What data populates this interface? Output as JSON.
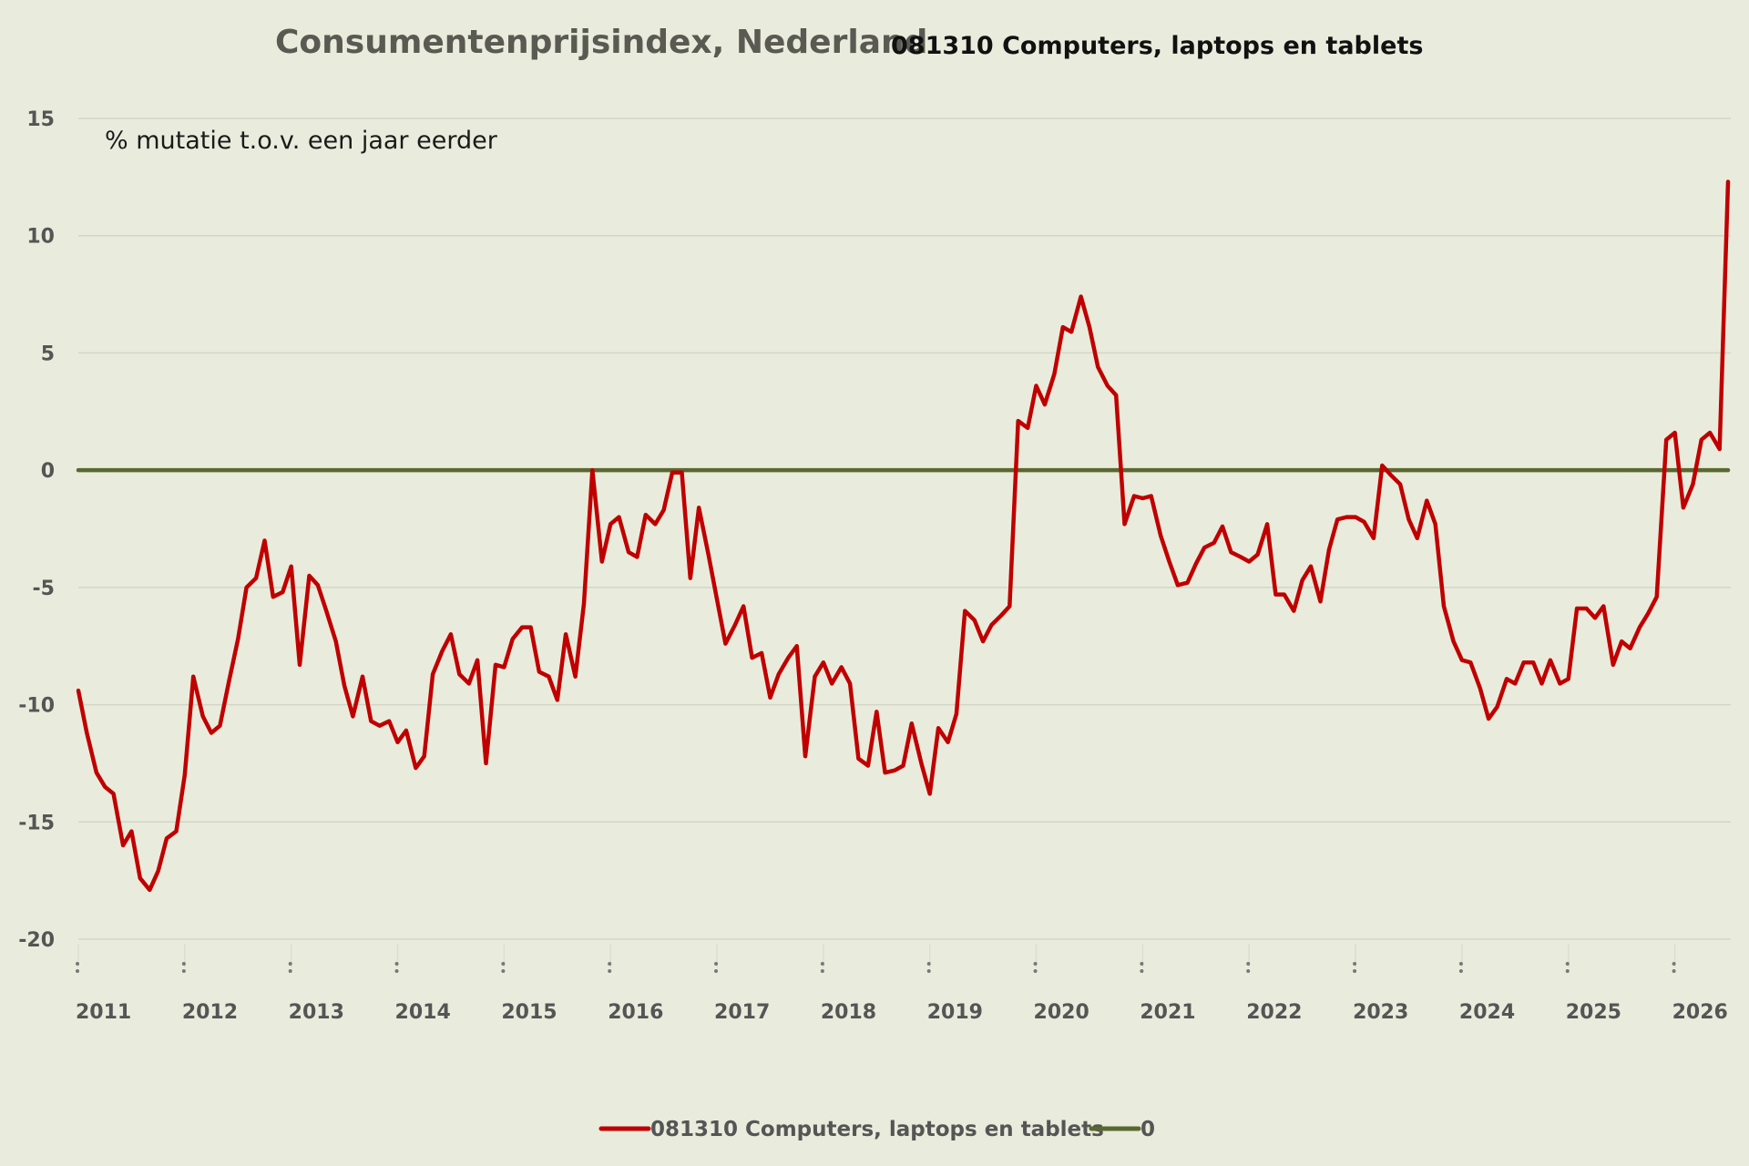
{
  "chart_data": {
    "type": "line",
    "title": "Consumentenprijsindex, Nederland",
    "subtitle": "081310 Computers, laptops en tablets",
    "ylabel": "% mutatie t.o.v. een jaar eerder",
    "ylim": [
      -20,
      15
    ],
    "yticks": [
      15,
      10,
      5,
      0,
      -5,
      -10,
      -15,
      -20
    ],
    "xlim": [
      2011.0,
      2026.65
    ],
    "xticks": [
      "2011",
      "2012",
      "2013",
      "2014",
      "2015",
      "2016",
      "2017",
      "2018",
      "2019",
      "2020",
      "2021",
      "2022",
      "2023",
      "2024",
      "2025",
      "2026"
    ],
    "grid": true,
    "legend_position": "bottom",
    "series": [
      {
        "name": "081310 Computers, laptops en tablets",
        "color": "#c00000",
        "points": [
          [
            2011.0,
            -9.4
          ],
          [
            2011.08,
            -11.2
          ],
          [
            2011.17,
            -12.9
          ],
          [
            2011.25,
            -13.5
          ],
          [
            2011.33,
            -13.8
          ],
          [
            2011.42,
            -16.0
          ],
          [
            2011.5,
            -15.4
          ],
          [
            2011.58,
            -17.4
          ],
          [
            2011.67,
            -17.9
          ],
          [
            2011.75,
            -17.1
          ],
          [
            2011.83,
            -15.7
          ],
          [
            2011.92,
            -15.4
          ],
          [
            2012.0,
            -13.0
          ],
          [
            2012.08,
            -8.8
          ],
          [
            2012.17,
            -10.5
          ],
          [
            2012.25,
            -11.2
          ],
          [
            2012.33,
            -10.9
          ],
          [
            2012.42,
            -8.9
          ],
          [
            2012.5,
            -7.2
          ],
          [
            2012.58,
            -5.0
          ],
          [
            2012.67,
            -4.6
          ],
          [
            2012.75,
            -3.0
          ],
          [
            2012.83,
            -5.4
          ],
          [
            2012.92,
            -5.2
          ],
          [
            2013.0,
            -4.1
          ],
          [
            2013.08,
            -8.3
          ],
          [
            2013.17,
            -4.5
          ],
          [
            2013.25,
            -4.9
          ],
          [
            2013.33,
            -6.0
          ],
          [
            2013.42,
            -7.3
          ],
          [
            2013.5,
            -9.2
          ],
          [
            2013.58,
            -10.5
          ],
          [
            2013.67,
            -8.8
          ],
          [
            2013.75,
            -10.7
          ],
          [
            2013.83,
            -10.9
          ],
          [
            2013.92,
            -10.7
          ],
          [
            2014.0,
            -11.6
          ],
          [
            2014.08,
            -11.1
          ],
          [
            2014.17,
            -12.7
          ],
          [
            2014.25,
            -12.2
          ],
          [
            2014.33,
            -8.7
          ],
          [
            2014.42,
            -7.7
          ],
          [
            2014.5,
            -7.0
          ],
          [
            2014.58,
            -8.7
          ],
          [
            2014.67,
            -9.1
          ],
          [
            2014.75,
            -8.1
          ],
          [
            2014.83,
            -12.5
          ],
          [
            2014.92,
            -8.3
          ],
          [
            2015.0,
            -8.4
          ],
          [
            2015.08,
            -7.2
          ],
          [
            2015.17,
            -6.7
          ],
          [
            2015.25,
            -6.7
          ],
          [
            2015.33,
            -8.6
          ],
          [
            2015.42,
            -8.8
          ],
          [
            2015.5,
            -9.8
          ],
          [
            2015.58,
            -7.0
          ],
          [
            2015.67,
            -8.8
          ],
          [
            2015.75,
            -5.7
          ],
          [
            2015.83,
            0.0
          ],
          [
            2015.92,
            -3.9
          ],
          [
            2016.0,
            -2.3
          ],
          [
            2016.08,
            -2.0
          ],
          [
            2016.17,
            -3.5
          ],
          [
            2016.25,
            -3.7
          ],
          [
            2016.33,
            -1.9
          ],
          [
            2016.42,
            -2.3
          ],
          [
            2016.5,
            -1.7
          ],
          [
            2016.58,
            -0.1
          ],
          [
            2016.67,
            -0.1
          ],
          [
            2016.75,
            -4.6
          ],
          [
            2016.83,
            -1.6
          ],
          [
            2016.92,
            -3.6
          ],
          [
            2017.0,
            -5.5
          ],
          [
            2017.08,
            -7.4
          ],
          [
            2017.17,
            -6.6
          ],
          [
            2017.25,
            -5.8
          ],
          [
            2017.33,
            -8.0
          ],
          [
            2017.42,
            -7.8
          ],
          [
            2017.5,
            -9.7
          ],
          [
            2017.58,
            -8.7
          ],
          [
            2017.67,
            -8.0
          ],
          [
            2017.75,
            -7.5
          ],
          [
            2017.83,
            -12.2
          ],
          [
            2017.92,
            -8.8
          ],
          [
            2018.0,
            -8.2
          ],
          [
            2018.08,
            -9.1
          ],
          [
            2018.17,
            -8.4
          ],
          [
            2018.25,
            -9.1
          ],
          [
            2018.33,
            -12.3
          ],
          [
            2018.42,
            -12.6
          ],
          [
            2018.5,
            -10.3
          ],
          [
            2018.58,
            -12.9
          ],
          [
            2018.67,
            -12.8
          ],
          [
            2018.75,
            -12.6
          ],
          [
            2018.83,
            -10.8
          ],
          [
            2018.92,
            -12.5
          ],
          [
            2019.0,
            -13.8
          ],
          [
            2019.08,
            -11.0
          ],
          [
            2019.17,
            -11.6
          ],
          [
            2019.25,
            -10.4
          ],
          [
            2019.33,
            -6.0
          ],
          [
            2019.42,
            -6.4
          ],
          [
            2019.5,
            -7.3
          ],
          [
            2019.58,
            -6.6
          ],
          [
            2019.67,
            -6.2
          ],
          [
            2019.75,
            -5.8
          ],
          [
            2019.83,
            2.1
          ],
          [
            2019.92,
            1.8
          ],
          [
            2020.0,
            3.6
          ],
          [
            2020.08,
            2.8
          ],
          [
            2020.17,
            4.1
          ],
          [
            2020.25,
            6.1
          ],
          [
            2020.33,
            5.9
          ],
          [
            2020.42,
            7.4
          ],
          [
            2020.5,
            6.1
          ],
          [
            2020.58,
            4.4
          ],
          [
            2020.67,
            3.6
          ],
          [
            2020.75,
            3.2
          ],
          [
            2020.83,
            -2.3
          ],
          [
            2020.92,
            -1.1
          ],
          [
            2021.0,
            -1.2
          ],
          [
            2021.08,
            -1.1
          ],
          [
            2021.17,
            -2.8
          ],
          [
            2021.25,
            -3.9
          ],
          [
            2021.33,
            -4.9
          ],
          [
            2021.42,
            -4.8
          ],
          [
            2021.5,
            -4.0
          ],
          [
            2021.58,
            -3.3
          ],
          [
            2021.67,
            -3.1
          ],
          [
            2021.75,
            -2.4
          ],
          [
            2021.83,
            -3.5
          ],
          [
            2021.92,
            -3.7
          ],
          [
            2022.0,
            -3.9
          ],
          [
            2022.08,
            -3.6
          ],
          [
            2022.17,
            -2.3
          ],
          [
            2022.25,
            -5.3
          ],
          [
            2022.33,
            -5.3
          ],
          [
            2022.42,
            -6.0
          ],
          [
            2022.5,
            -4.7
          ],
          [
            2022.58,
            -4.1
          ],
          [
            2022.67,
            -5.6
          ],
          [
            2022.75,
            -3.4
          ],
          [
            2022.83,
            -2.1
          ],
          [
            2022.92,
            -2.0
          ],
          [
            2023.0,
            -2.0
          ],
          [
            2023.08,
            -2.2
          ],
          [
            2023.17,
            -2.9
          ],
          [
            2023.25,
            0.2
          ],
          [
            2023.33,
            -0.2
          ],
          [
            2023.42,
            -0.6
          ],
          [
            2023.5,
            -2.1
          ],
          [
            2023.58,
            -2.9
          ],
          [
            2023.67,
            -1.3
          ],
          [
            2023.75,
            -2.3
          ],
          [
            2023.83,
            -5.8
          ],
          [
            2023.92,
            -7.3
          ],
          [
            2024.0,
            -8.1
          ],
          [
            2024.08,
            -8.2
          ],
          [
            2024.17,
            -9.3
          ],
          [
            2024.25,
            -10.6
          ],
          [
            2024.33,
            -10.1
          ],
          [
            2024.42,
            -8.9
          ],
          [
            2024.5,
            -9.1
          ],
          [
            2024.58,
            -8.2
          ],
          [
            2024.67,
            -8.2
          ],
          [
            2024.75,
            -9.1
          ],
          [
            2024.83,
            -8.1
          ],
          [
            2024.92,
            -9.1
          ],
          [
            2025.0,
            -8.9
          ],
          [
            2025.08,
            -5.9
          ],
          [
            2025.17,
            -5.9
          ],
          [
            2025.25,
            -6.3
          ],
          [
            2025.33,
            -5.8
          ],
          [
            2025.42,
            -8.3
          ],
          [
            2025.5,
            -7.3
          ],
          [
            2025.58,
            -7.6
          ],
          [
            2025.67,
            -6.7
          ],
          [
            2025.75,
            -6.1
          ],
          [
            2025.83,
            -5.4
          ],
          [
            2025.92,
            1.3
          ],
          [
            2026.0,
            1.6
          ],
          [
            2026.08,
            -1.6
          ],
          [
            2026.17,
            -0.6
          ],
          [
            2026.25,
            1.3
          ],
          [
            2026.33,
            1.6
          ],
          [
            2026.42,
            0.9
          ],
          [
            2026.5,
            12.3
          ]
        ]
      },
      {
        "name": "0",
        "color": "#5a6830",
        "points": [
          [
            2011.0,
            0
          ],
          [
            2026.5,
            0
          ]
        ]
      }
    ]
  }
}
